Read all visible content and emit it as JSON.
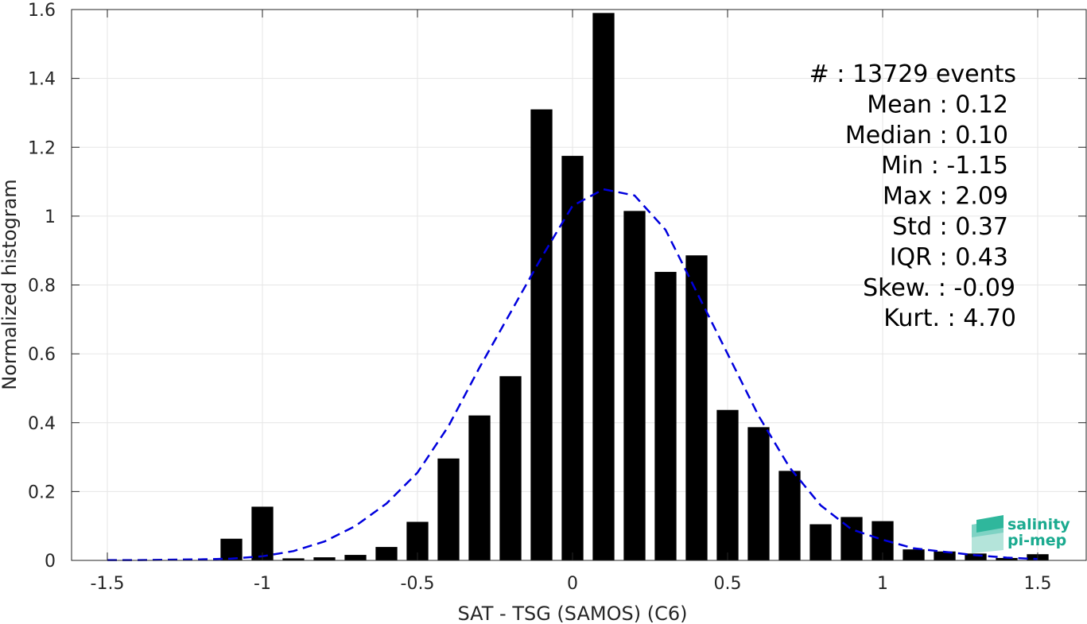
{
  "chart_data": {
    "type": "bar",
    "xlabel": "SAT - TSG (SAMOS) (C6)",
    "ylabel": "Normalized histogram",
    "xlim": [
      -1.5,
      1.5
    ],
    "ylim": [
      0,
      1.6
    ],
    "grid": true,
    "x_ticks": [
      -1.5,
      -1,
      -0.5,
      0,
      0.5,
      1,
      1.5
    ],
    "x_tick_labels": [
      "-1.5",
      "-1",
      "-0.5",
      "0",
      "0.5",
      "1",
      "1.5"
    ],
    "y_ticks": [
      0,
      0.2,
      0.4,
      0.6,
      0.8,
      1,
      1.2,
      1.4,
      1.6
    ],
    "y_tick_labels": [
      "0",
      "0.2",
      "0.4",
      "0.6",
      "0.8",
      "1",
      "1.2",
      "1.4",
      "1.6"
    ],
    "bar_width": 0.07,
    "bar_color": "#000000",
    "bins": [
      -1.1,
      -1.0,
      -0.9,
      -0.8,
      -0.7,
      -0.6,
      -0.5,
      -0.4,
      -0.3,
      -0.2,
      -0.1,
      0.0,
      0.1,
      0.2,
      0.3,
      0.4,
      0.5,
      0.6,
      0.7,
      0.8,
      0.9,
      1.0,
      1.1,
      1.2,
      1.3,
      1.4,
      1.5
    ],
    "values": [
      0.063,
      0.156,
      0.006,
      0.009,
      0.016,
      0.039,
      0.112,
      0.296,
      0.421,
      0.535,
      1.31,
      1.175,
      1.59,
      1.015,
      0.838,
      0.886,
      0.437,
      0.387,
      0.26,
      0.105,
      0.126,
      0.114,
      0.032,
      0.026,
      0.02,
      0.007,
      0.018
    ],
    "fit_curve": {
      "style": "dashed",
      "color": "#0000dd",
      "x": [
        -1.5,
        -1.4,
        -1.3,
        -1.2,
        -1.1,
        -1.0,
        -0.9,
        -0.8,
        -0.7,
        -0.6,
        -0.5,
        -0.4,
        -0.3,
        -0.2,
        -0.1,
        0.0,
        0.1,
        0.2,
        0.3,
        0.4,
        0.5,
        0.6,
        0.7,
        0.8,
        0.9,
        1.0,
        1.1,
        1.2,
        1.3,
        1.4,
        1.5
      ],
      "y": [
        0.001,
        0.001,
        0.002,
        0.003,
        0.005,
        0.012,
        0.027,
        0.055,
        0.1,
        0.165,
        0.255,
        0.39,
        0.56,
        0.72,
        0.88,
        1.03,
        1.078,
        1.06,
        0.96,
        0.78,
        0.6,
        0.42,
        0.27,
        0.16,
        0.09,
        0.06,
        0.035,
        0.025,
        0.015,
        0.008,
        0.004
      ]
    },
    "stats": [
      "#  : 13729 events",
      "Mean : 0.12",
      "Median : 0.10",
      "Min : -1.15",
      "Max : 2.09",
      "Std : 0.37",
      "IQR : 0.43",
      "Skew. : -0.09",
      "Kurt. : 4.70"
    ]
  },
  "logo": {
    "line1": "salinity",
    "line2": "pi-mep",
    "color": "#1aaa8f"
  }
}
